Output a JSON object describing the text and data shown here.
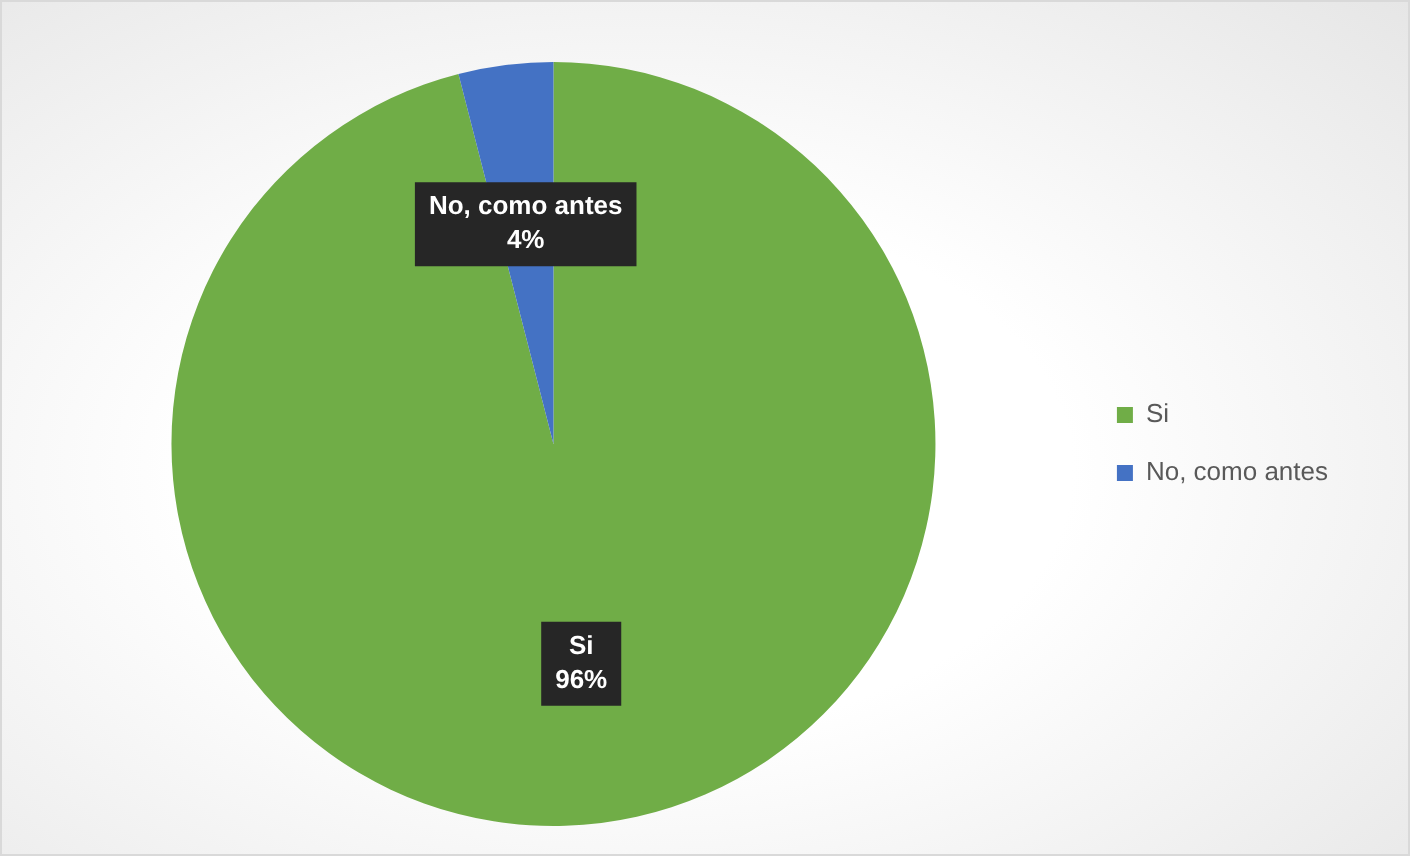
{
  "chart_data": {
    "type": "pie",
    "categories": [
      "Si",
      "No, como antes"
    ],
    "values": [
      96,
      4
    ],
    "colors": [
      "#70ad47",
      "#4472c4"
    ],
    "value_labels": [
      "96%",
      "4%"
    ],
    "legend": "right"
  }
}
